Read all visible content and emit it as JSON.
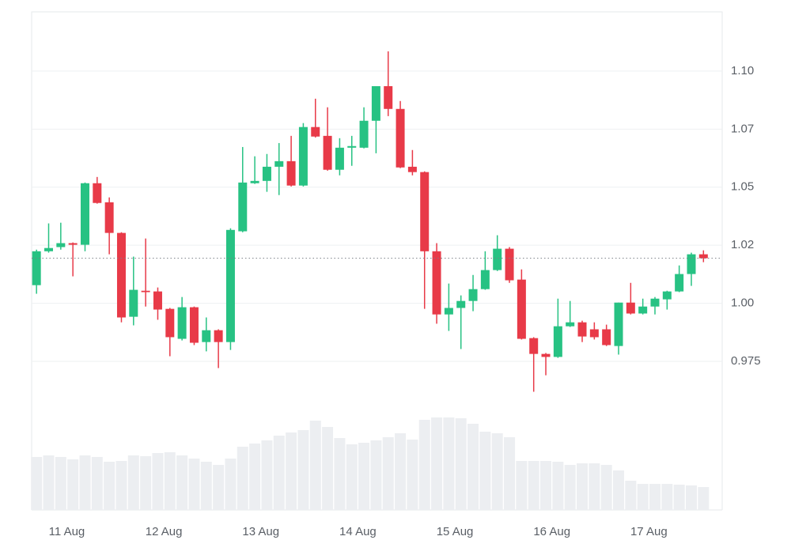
{
  "chart_data": {
    "type": "candlestick",
    "categories": [
      null,
      null,
      null,
      "11 Aug",
      null,
      null,
      null,
      null,
      null,
      null,
      null,
      "12 Aug",
      null,
      null,
      null,
      null,
      null,
      null,
      null,
      "13 Aug",
      null,
      null,
      null,
      null,
      null,
      null,
      null,
      "14 Aug",
      null,
      null,
      null,
      null,
      null,
      null,
      null,
      "15 Aug",
      null,
      null,
      null,
      null,
      null,
      null,
      null,
      "16 Aug",
      null,
      null,
      null,
      null,
      null,
      null,
      null,
      "17 Aug",
      null,
      null,
      null,
      null
    ],
    "open": [
      1.0078,
      1.0224,
      1.0242,
      1.0259,
      1.0252,
      1.0517,
      1.0435,
      1.0303,
      0.9942,
      1.0054,
      1.0051,
      0.9976,
      0.9847,
      0.9983,
      0.9833,
      0.9884,
      0.9833,
      1.031,
      1.0517,
      1.0527,
      1.0588,
      1.0612,
      1.0507,
      1.0759,
      1.0721,
      1.0575,
      1.067,
      1.067,
      1.0786,
      1.0935,
      1.0837,
      1.0588,
      1.0565,
      1.0224,
      0.9952,
      0.998,
      1.001,
      1.0061,
      1.0143,
      1.0235,
      1.0102,
      0.985,
      0.9782,
      0.9769,
      0.9901,
      0.9918,
      0.9888,
      0.9888,
      0.9816,
      1.0003,
      0.9956,
      0.9986,
      1.0017,
      1.0051,
      1.0126,
      1.0211
    ],
    "high": [
      1.0231,
      1.0344,
      1.0347,
      1.0262,
      1.052,
      1.0544,
      1.0456,
      1.0306,
      1.0201,
      1.0279,
      1.0068,
      0.998,
      1.0027,
      0.9986,
      0.9939,
      0.9888,
      1.0323,
      1.0673,
      1.0633,
      1.0643,
      1.069,
      1.0721,
      1.0776,
      1.0881,
      1.0844,
      1.0711,
      1.0721,
      1.0844,
      1.0935,
      1.1085,
      1.0871,
      1.066,
      1.0568,
      1.0259,
      1.0085,
      1.0034,
      1.0122,
      1.0224,
      1.0293,
      1.0242,
      1.0146,
      0.9854,
      0.9786,
      1.002,
      1.001,
      0.9925,
      0.9918,
      0.9908,
      1.0003,
      1.0088,
      1.002,
      1.0027,
      1.0054,
      1.0163,
      1.0218,
      1.0228
    ],
    "low": [
      1.0041,
      1.0218,
      1.0231,
      1.0116,
      1.0224,
      1.0429,
      1.0211,
      0.9918,
      0.9905,
      0.9986,
      0.9929,
      0.9772,
      0.984,
      0.982,
      0.9793,
      0.9721,
      0.9799,
      1.0306,
      1.0514,
      1.048,
      1.0466,
      1.0503,
      1.0503,
      1.0714,
      1.0571,
      1.0551,
      1.0592,
      1.0667,
      1.0646,
      1.0806,
      1.0582,
      1.0551,
      0.9976,
      0.9912,
      0.9881,
      0.9803,
      0.9966,
      1.0058,
      1.0139,
      1.0088,
      0.9844,
      0.9619,
      0.969,
      0.9765,
      0.9898,
      0.9833,
      0.9844,
      0.9816,
      0.9779,
      0.9952,
      0.9952,
      0.9952,
      0.9973,
      1.0048,
      1.0075,
      1.0177
    ],
    "close": [
      1.0224,
      1.0238,
      1.0259,
      1.0252,
      1.0517,
      1.0432,
      1.0303,
      0.9939,
      1.0058,
      1.0048,
      0.9973,
      0.9854,
      0.9983,
      0.983,
      0.9884,
      0.9833,
      1.0316,
      1.052,
      1.0527,
      1.0588,
      1.0612,
      1.0507,
      1.0759,
      1.0718,
      1.0575,
      1.067,
      1.0677,
      1.0786,
      1.0935,
      1.0837,
      1.0585,
      1.0565,
      1.0224,
      0.9952,
      0.998,
      1.001,
      1.0061,
      1.0143,
      1.0235,
      1.0099,
      0.9847,
      0.9782,
      0.9769,
      0.9901,
      0.9918,
      0.9857,
      0.9854,
      0.982,
      1.0003,
      0.9956,
      0.9986,
      1.002,
      1.0051,
      1.0126,
      1.0211,
      1.0194
    ],
    "volume": [
      67,
      69,
      67,
      64,
      69,
      67,
      61,
      62,
      69,
      68,
      72,
      73,
      69,
      65,
      61,
      57,
      65,
      80,
      84,
      88,
      94,
      98,
      101,
      113,
      105,
      91,
      83,
      85,
      88,
      92,
      97,
      89,
      114,
      117,
      117,
      116,
      109,
      99,
      97,
      92,
      62,
      62,
      62,
      61,
      57,
      59,
      59,
      57,
      50,
      37,
      33,
      33,
      33,
      32,
      31,
      29
    ],
    "ylim": [
      0.911,
      1.1255
    ],
    "yticks": [
      {
        "value": 0.975,
        "label": "0.975"
      },
      {
        "value": 1.0,
        "label": "1.00"
      },
      {
        "value": 1.025,
        "label": "1.02"
      },
      {
        "value": 1.05,
        "label": "1.05"
      },
      {
        "value": 1.075,
        "label": "1.07"
      },
      {
        "value": 1.1,
        "label": "1.10"
      }
    ],
    "volume_ylim": [
      0,
      630
    ],
    "up_color": "#27c283",
    "down_color": "#e83a48",
    "volume_color": "#eceef1",
    "grid": true,
    "last_price_line": true
  }
}
